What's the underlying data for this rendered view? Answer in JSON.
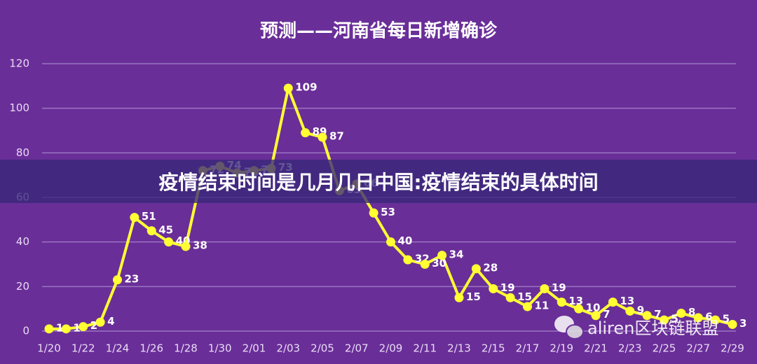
{
  "chart_data": {
    "type": "line",
    "title": "预测——河南省每日新增确诊",
    "categories": [
      "1/20",
      null,
      "1/22",
      null,
      "1/24",
      null,
      "1/26",
      null,
      "1/28",
      null,
      "1/30",
      null,
      "2/01",
      null,
      "2/03",
      null,
      "2/05",
      null,
      "2/07",
      null,
      "2/09",
      null,
      "2/11",
      null,
      "2/13",
      null,
      "2/15",
      null,
      "2/17",
      null,
      "2/19",
      null,
      "2/21",
      null,
      "2/23",
      null,
      "2/25",
      null,
      "2/27",
      null,
      "2/29"
    ],
    "values": [
      1,
      1,
      2,
      4,
      23,
      51,
      45,
      40,
      38,
      72,
      74,
      71,
      72,
      73,
      109,
      89,
      87,
      63,
      66,
      53,
      40,
      32,
      30,
      34,
      15,
      28,
      19,
      15,
      11,
      19,
      13,
      10,
      7,
      13,
      9,
      7,
      5,
      8,
      6,
      5,
      3
    ],
    "color": "#ffff33",
    "ylim": [
      0,
      120
    ],
    "yticks": [
      0,
      20,
      40,
      60,
      80,
      100,
      120
    ],
    "grid": true
  },
  "overlay": {
    "banner": "疫情结束时间是几月几日中国:疫情结束的具体时间",
    "watermark": "aliren区块链联盟"
  }
}
